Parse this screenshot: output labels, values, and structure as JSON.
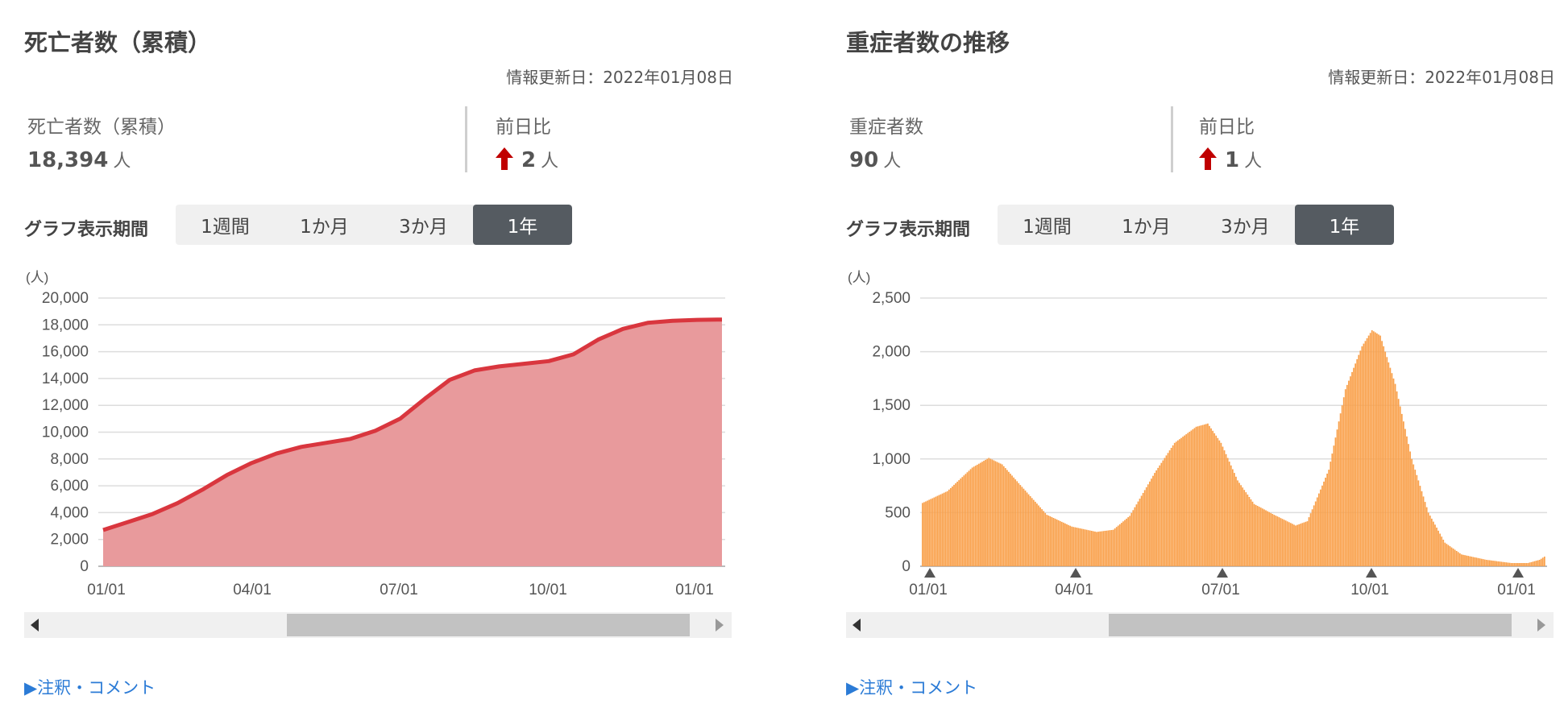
{
  "panels": [
    {
      "title": "死亡者数（累積）",
      "updated": "情報更新日：2022年01月08日",
      "stat_label": "死亡者数（累積）",
      "stat_value": "18,394",
      "unit": "人",
      "diff_label": "前日比",
      "diff_value": "2",
      "period_label": "グラフ表示期間",
      "periods": [
        "1週間",
        "1か月",
        "3か月",
        "1年"
      ],
      "active_period": "1年",
      "note": "▶注釈・コメント"
    },
    {
      "title": "重症者数の推移",
      "updated": "情報更新日：2022年01月08日",
      "stat_label": "重症者数",
      "stat_value": "90",
      "unit": "人",
      "diff_label": "前日比",
      "diff_value": "1",
      "period_label": "グラフ表示期間",
      "periods": [
        "1週間",
        "1か月",
        "3か月",
        "1年"
      ],
      "active_period": "1年",
      "note": "▶注釈・コメント"
    }
  ],
  "colors": {
    "area_fill": "#e89a9c",
    "area_line": "#d9363e",
    "bar_fill": "#f9a04a",
    "up_arrow": "#c00000",
    "link": "#2b7bd6"
  },
  "chart_data": [
    {
      "type": "area",
      "ylabel": "(人)",
      "ylim": [
        0,
        20000
      ],
      "yticks": [
        0,
        2000,
        4000,
        6000,
        8000,
        10000,
        12000,
        14000,
        16000,
        18000,
        20000
      ],
      "ytick_labels": [
        "0",
        "2,000",
        "4,000",
        "6,000",
        "8,000",
        "10,000",
        "12,000",
        "14,000",
        "16,000",
        "18,000",
        "20,000"
      ],
      "xtick_labels": [
        "01/01",
        "04/01",
        "07/01",
        "10/01",
        "01/01"
      ],
      "grid": true,
      "scrollbar": {
        "thumb_start": 0.36,
        "thumb_end": 0.98
      },
      "x": [
        0,
        15,
        30,
        45,
        60,
        75,
        90,
        105,
        120,
        135,
        150,
        165,
        180,
        195,
        210,
        225,
        240,
        255,
        270,
        285,
        300,
        315,
        330,
        345,
        360,
        375
      ],
      "series": [
        {
          "values": [
            2700,
            3300,
            3900,
            4700,
            5700,
            6800,
            7700,
            8400,
            8900,
            9200,
            9500,
            10100,
            11000,
            12500,
            13900,
            14600,
            14900,
            15100,
            15300,
            15800,
            16900,
            17700,
            18150,
            18300,
            18370,
            18394
          ]
        }
      ]
    },
    {
      "type": "bar",
      "ylabel": "(人)",
      "ylim": [
        0,
        2500
      ],
      "yticks": [
        0,
        500,
        1000,
        1500,
        2000,
        2500
      ],
      "ytick_labels": [
        "0",
        "500",
        "1,000",
        "1,500",
        "2,000",
        "2,500"
      ],
      "xtick_labels": [
        "01/01",
        "04/01",
        "07/01",
        "10/01",
        "01/01"
      ],
      "grid": true,
      "scrollbar": {
        "thumb_start": 0.36,
        "thumb_end": 0.98
      },
      "keyframes": [
        {
          "day": 0,
          "value": 590
        },
        {
          "day": 15,
          "value": 700
        },
        {
          "day": 30,
          "value": 920
        },
        {
          "day": 40,
          "value": 1010
        },
        {
          "day": 48,
          "value": 950
        },
        {
          "day": 60,
          "value": 740
        },
        {
          "day": 75,
          "value": 480
        },
        {
          "day": 90,
          "value": 370
        },
        {
          "day": 105,
          "value": 320
        },
        {
          "day": 115,
          "value": 340
        },
        {
          "day": 125,
          "value": 470
        },
        {
          "day": 140,
          "value": 870
        },
        {
          "day": 152,
          "value": 1150
        },
        {
          "day": 165,
          "value": 1300
        },
        {
          "day": 172,
          "value": 1330
        },
        {
          "day": 180,
          "value": 1150
        },
        {
          "day": 190,
          "value": 800
        },
        {
          "day": 200,
          "value": 580
        },
        {
          "day": 212,
          "value": 480
        },
        {
          "day": 225,
          "value": 380
        },
        {
          "day": 232,
          "value": 420
        },
        {
          "day": 245,
          "value": 900
        },
        {
          "day": 255,
          "value": 1650
        },
        {
          "day": 265,
          "value": 2050
        },
        {
          "day": 271,
          "value": 2200
        },
        {
          "day": 276,
          "value": 2150
        },
        {
          "day": 285,
          "value": 1700
        },
        {
          "day": 295,
          "value": 1000
        },
        {
          "day": 305,
          "value": 500
        },
        {
          "day": 315,
          "value": 220
        },
        {
          "day": 325,
          "value": 110
        },
        {
          "day": 340,
          "value": 60
        },
        {
          "day": 355,
          "value": 30
        },
        {
          "day": 365,
          "value": 30
        },
        {
          "day": 372,
          "value": 60
        },
        {
          "day": 375,
          "value": 90
        }
      ]
    }
  ]
}
